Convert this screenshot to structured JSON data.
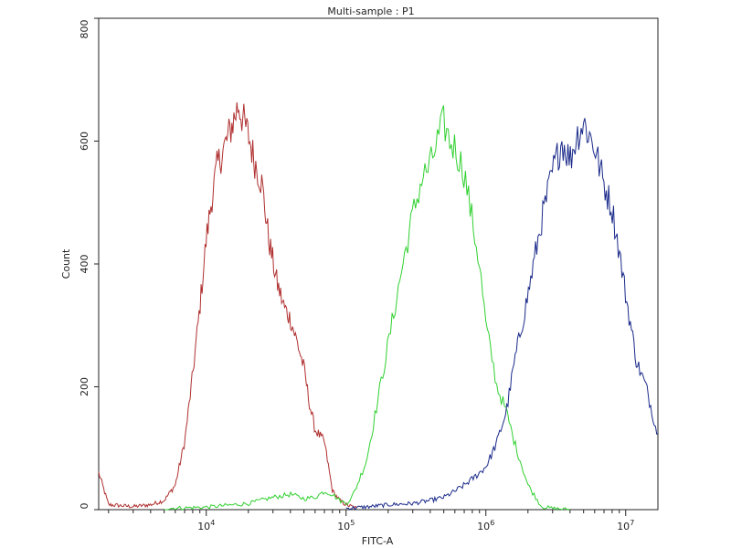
{
  "chart_data": {
    "type": "line",
    "title": "Multi-sample : P1",
    "xlabel": "FITC-A",
    "ylabel": "Count",
    "x_scale": "log",
    "xlim": [
      1700,
      17000000
    ],
    "ylim": [
      0,
      800
    ],
    "yticks": [
      0,
      200,
      400,
      600,
      800
    ],
    "xticks": [
      {
        "value": 10000,
        "base": "10",
        "exp": "4"
      },
      {
        "value": 100000,
        "base": "10",
        "exp": "5"
      },
      {
        "value": 1000000,
        "base": "10",
        "exp": "6"
      },
      {
        "value": 10000000,
        "base": "10",
        "exp": "7"
      }
    ],
    "grid": false,
    "legend": "none",
    "series": [
      {
        "color": "#b03030",
        "x": [
          1700,
          2000,
          3000,
          4000,
          5000,
          6000,
          7000,
          8000,
          9000,
          10000,
          11000,
          12000,
          14000,
          16000,
          17000,
          18000,
          20000,
          22000,
          25000,
          28000,
          32000,
          36000,
          40000,
          45000,
          50000,
          55000,
          60000,
          65000,
          70000,
          80000,
          90000,
          100000,
          110000,
          120000
        ],
        "y": [
          60,
          8,
          5,
          8,
          15,
          40,
          110,
          220,
          330,
          440,
          510,
          560,
          600,
          640,
          660,
          640,
          610,
          570,
          530,
          440,
          370,
          330,
          310,
          270,
          230,
          170,
          130,
          120,
          110,
          30,
          15,
          8,
          5,
          2
        ]
      },
      {
        "color": "#30d030",
        "x": [
          5000,
          10000,
          20000,
          30000,
          40000,
          50000,
          60000,
          70000,
          80000,
          90000,
          100000,
          110000,
          120000,
          140000,
          160000,
          200000,
          250000,
          300000,
          350000,
          400000,
          450000,
          500000,
          550000,
          600000,
          700000,
          800000,
          900000,
          1000000,
          1100000,
          1200000,
          1400000,
          1600000,
          2000000,
          2500000,
          3000000,
          4000000
        ],
        "y": [
          2,
          4,
          10,
          20,
          25,
          18,
          20,
          30,
          25,
          15,
          10,
          20,
          40,
          80,
          150,
          270,
          390,
          480,
          540,
          560,
          600,
          630,
          600,
          590,
          550,
          470,
          400,
          300,
          250,
          200,
          160,
          110,
          40,
          5,
          2,
          0
        ]
      },
      {
        "color": "#1a2a8a",
        "x": [
          100000,
          150000,
          200000,
          300000,
          400000,
          500000,
          600000,
          700000,
          800000,
          900000,
          1000000,
          1100000,
          1200000,
          1400000,
          1600000,
          2000000,
          2500000,
          3000000,
          3500000,
          4000000,
          4500000,
          5000000,
          5500000,
          6000000,
          7000000,
          8000000,
          9000000,
          10000000,
          12000000,
          14000000,
          17000000
        ],
        "y": [
          2,
          5,
          8,
          10,
          15,
          20,
          30,
          40,
          50,
          60,
          70,
          90,
          110,
          160,
          240,
          350,
          470,
          550,
          600,
          570,
          610,
          630,
          610,
          590,
          530,
          490,
          420,
          350,
          240,
          200,
          120
        ]
      }
    ]
  }
}
